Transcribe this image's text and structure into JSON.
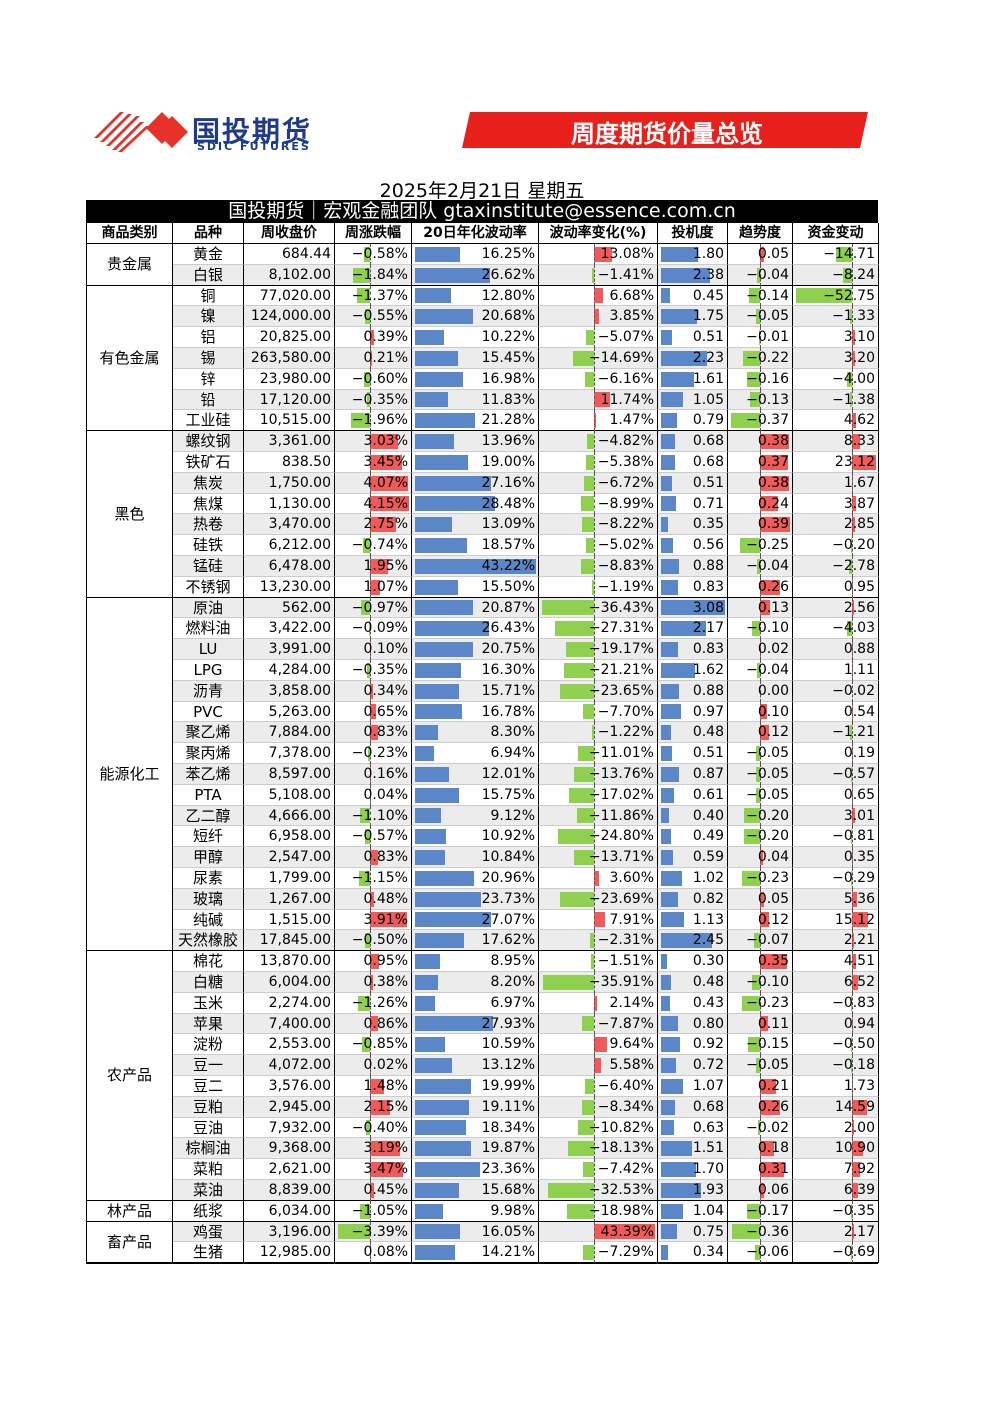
{
  "header": {
    "logo_name": "国投期货",
    "logo_en": "SDIC FUTURES",
    "banner": "周度期货价量总览"
  },
  "date": "2025年2月21日 星期五",
  "team_line": "国投期货｜宏观金融团队 gtaxinstitute@essence.com.cn",
  "table": {
    "columns": [
      "商品类别",
      "品种",
      "周收盘价",
      "周涨跌幅",
      "20日年化波动率",
      "波动率变化(%)",
      "投机度",
      "趋势度",
      "资金变动"
    ],
    "groups": [
      {
        "category": "贵金属",
        "rows": [
          [
            "黄金",
            "684.44",
            "−0.58%",
            "16.25%",
            "13.08%",
            "1.80",
            "0.05",
            "−14.71"
          ],
          [
            "白银",
            "8,102.00",
            "−1.84%",
            "26.62%",
            "−1.41%",
            "2.38",
            "−0.04",
            "−8.24"
          ]
        ]
      },
      {
        "category": "有色金属",
        "rows": [
          [
            "铜",
            "77,020.00",
            "−1.37%",
            "12.80%",
            "6.68%",
            "0.45",
            "−0.14",
            "−52.75"
          ],
          [
            "镍",
            "124,000.00",
            "−0.55%",
            "20.68%",
            "3.85%",
            "1.75",
            "−0.05",
            "−1.33"
          ],
          [
            "铝",
            "20,825.00",
            "0.39%",
            "10.22%",
            "−5.07%",
            "0.51",
            "−0.01",
            "3.10"
          ],
          [
            "锡",
            "263,580.00",
            "0.21%",
            "15.45%",
            "−14.69%",
            "2.23",
            "−0.22",
            "3.20"
          ],
          [
            "锌",
            "23,980.00",
            "−0.60%",
            "16.98%",
            "−6.16%",
            "1.61",
            "−0.16",
            "−4.00"
          ],
          [
            "铅",
            "17,120.00",
            "−0.35%",
            "11.83%",
            "11.74%",
            "1.05",
            "−0.13",
            "−1.38"
          ],
          [
            "工业硅",
            "10,515.00",
            "−1.96%",
            "21.28%",
            "1.47%",
            "0.79",
            "−0.37",
            "4.62"
          ]
        ]
      },
      {
        "category": "黑色",
        "rows": [
          [
            "螺纹钢",
            "3,361.00",
            "3.03%",
            "13.96%",
            "−4.82%",
            "0.68",
            "0.38",
            "8.33"
          ],
          [
            "铁矿石",
            "838.50",
            "3.45%",
            "19.00%",
            "−5.38%",
            "0.68",
            "0.37",
            "23.12"
          ],
          [
            "焦炭",
            "1,750.00",
            "4.07%",
            "27.16%",
            "−6.72%",
            "0.51",
            "0.38",
            "1.67"
          ],
          [
            "焦煤",
            "1,130.00",
            "4.15%",
            "28.48%",
            "−8.99%",
            "0.71",
            "0.24",
            "3.87"
          ],
          [
            "热卷",
            "3,470.00",
            "2.75%",
            "13.09%",
            "−8.22%",
            "0.35",
            "0.39",
            "2.85"
          ],
          [
            "硅铁",
            "6,212.00",
            "−0.74%",
            "18.57%",
            "−5.02%",
            "0.56",
            "−0.25",
            "−0.20"
          ],
          [
            "锰硅",
            "6,478.00",
            "1.95%",
            "43.22%",
            "−8.83%",
            "0.88",
            "−0.04",
            "−2.78"
          ],
          [
            "不锈钢",
            "13,230.00",
            "1.07%",
            "15.50%",
            "−1.19%",
            "0.83",
            "0.26",
            "0.95"
          ]
        ]
      },
      {
        "category": "能源化工",
        "rows": [
          [
            "原油",
            "562.00",
            "−0.97%",
            "20.87%",
            "−36.43%",
            "3.08",
            "0.13",
            "2.56"
          ],
          [
            "燃料油",
            "3,422.00",
            "−0.09%",
            "26.43%",
            "−27.31%",
            "2.17",
            "−0.10",
            "−4.03"
          ],
          [
            "LU",
            "3,991.00",
            "0.10%",
            "20.75%",
            "−19.17%",
            "0.83",
            "0.02",
            "0.88"
          ],
          [
            "LPG",
            "4,284.00",
            "−0.35%",
            "16.30%",
            "−21.21%",
            "1.62",
            "−0.04",
            "1.11"
          ],
          [
            "沥青",
            "3,858.00",
            "0.34%",
            "15.71%",
            "−23.65%",
            "0.88",
            "0.00",
            "−0.02"
          ],
          [
            "PVC",
            "5,263.00",
            "0.65%",
            "16.78%",
            "−7.70%",
            "0.97",
            "0.10",
            "0.54"
          ],
          [
            "聚乙烯",
            "7,884.00",
            "0.83%",
            "8.30%",
            "−1.22%",
            "0.48",
            "0.12",
            "−1.21"
          ],
          [
            "聚丙烯",
            "7,378.00",
            "−0.23%",
            "6.94%",
            "−11.01%",
            "0.51",
            "−0.05",
            "0.19"
          ],
          [
            "苯乙烯",
            "8,597.00",
            "0.16%",
            "12.01%",
            "−13.76%",
            "0.87",
            "−0.05",
            "−0.57"
          ],
          [
            "PTA",
            "5,108.00",
            "0.04%",
            "15.75%",
            "−17.02%",
            "0.61",
            "−0.05",
            "0.65"
          ],
          [
            "乙二醇",
            "4,666.00",
            "−1.10%",
            "9.12%",
            "−11.86%",
            "0.40",
            "−0.20",
            "3.01"
          ],
          [
            "短纤",
            "6,958.00",
            "−0.57%",
            "10.92%",
            "−24.80%",
            "0.49",
            "−0.20",
            "−0.81"
          ],
          [
            "甲醇",
            "2,547.00",
            "0.83%",
            "10.84%",
            "−13.71%",
            "0.59",
            "0.04",
            "0.35"
          ],
          [
            "尿素",
            "1,799.00",
            "−1.15%",
            "20.96%",
            "3.60%",
            "1.02",
            "−0.23",
            "−0.29"
          ],
          [
            "玻璃",
            "1,267.00",
            "0.48%",
            "23.73%",
            "−23.69%",
            "0.82",
            "0.05",
            "5.36"
          ],
          [
            "纯碱",
            "1,515.00",
            "3.91%",
            "27.07%",
            "7.91%",
            "1.13",
            "0.12",
            "15.12"
          ],
          [
            "天然橡胶",
            "17,845.00",
            "−0.50%",
            "17.62%",
            "−2.31%",
            "2.45",
            "−0.07",
            "2.21"
          ]
        ]
      },
      {
        "category": "农产品",
        "rows": [
          [
            "棉花",
            "13,870.00",
            "0.95%",
            "8.95%",
            "−1.51%",
            "0.30",
            "0.35",
            "4.51"
          ],
          [
            "白糖",
            "6,004.00",
            "0.38%",
            "8.20%",
            "−35.91%",
            "0.48",
            "−0.10",
            "6.52"
          ],
          [
            "玉米",
            "2,274.00",
            "−1.26%",
            "6.97%",
            "2.14%",
            "0.43",
            "−0.23",
            "−0.83"
          ],
          [
            "苹果",
            "7,400.00",
            "0.86%",
            "27.93%",
            "−7.87%",
            "0.80",
            "0.11",
            "0.94"
          ],
          [
            "淀粉",
            "2,553.00",
            "−0.85%",
            "10.59%",
            "9.64%",
            "0.92",
            "−0.15",
            "−0.50"
          ],
          [
            "豆一",
            "4,072.00",
            "0.02%",
            "13.12%",
            "5.58%",
            "0.72",
            "−0.05",
            "−0.18"
          ],
          [
            "豆二",
            "3,576.00",
            "1.48%",
            "19.99%",
            "−6.40%",
            "1.07",
            "0.21",
            "1.73"
          ],
          [
            "豆粕",
            "2,945.00",
            "2.15%",
            "19.11%",
            "−8.34%",
            "0.68",
            "0.26",
            "14.59"
          ],
          [
            "豆油",
            "7,932.00",
            "−0.40%",
            "18.34%",
            "−10.82%",
            "0.63",
            "−0.02",
            "2.00"
          ],
          [
            "棕榈油",
            "9,368.00",
            "3.19%",
            "19.87%",
            "−18.13%",
            "1.51",
            "0.18",
            "10.90"
          ],
          [
            "菜粕",
            "2,621.00",
            "3.47%",
            "23.36%",
            "−7.42%",
            "1.70",
            "0.31",
            "7.92"
          ],
          [
            "菜油",
            "8,839.00",
            "0.45%",
            "15.68%",
            "−32.53%",
            "1.93",
            "0.06",
            "6.39"
          ]
        ]
      },
      {
        "category": "林产品",
        "rows": [
          [
            "纸浆",
            "6,034.00",
            "−1.05%",
            "9.98%",
            "−18.98%",
            "1.04",
            "−0.17",
            "−0.35"
          ]
        ]
      },
      {
        "category": "畜产品",
        "rows": [
          [
            "鸡蛋",
            "3,196.00",
            "−3.39%",
            "16.05%",
            "43.39%",
            "0.75",
            "−0.36",
            "2.17"
          ],
          [
            "生猪",
            "12,985.00",
            "0.08%",
            "14.21%",
            "−7.29%",
            "0.34",
            "−0.06",
            "−0.69"
          ]
        ]
      }
    ]
  }
}
